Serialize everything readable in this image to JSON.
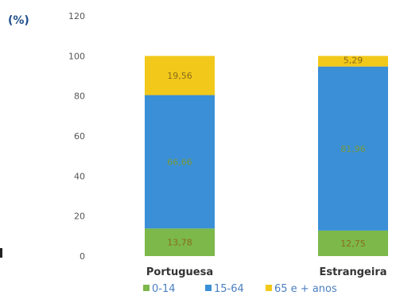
{
  "unit_label": "(%)",
  "colors": {
    "0-14": "#7cb84a",
    "15-64": "#3a8fd6",
    "65e": "#f2c81a",
    "value_text": "#8a6d1a",
    "tick_text": "#555555",
    "category_text": "#333333"
  },
  "chart_data": {
    "type": "bar",
    "stacked": true,
    "categories": [
      "Portuguesa",
      "Estrangeira"
    ],
    "series": [
      {
        "name": "0-14",
        "values": [
          13.78,
          12.75
        ],
        "labels": [
          "13,78",
          "12,75"
        ]
      },
      {
        "name": "15-64",
        "values": [
          66.66,
          81.96
        ],
        "labels": [
          "66,66",
          "81,96"
        ]
      },
      {
        "name": "65 e + anos",
        "values": [
          19.56,
          5.29
        ],
        "labels": [
          "19,56",
          "5,29"
        ]
      }
    ],
    "ylim": [
      0,
      120
    ],
    "yticks": [
      0,
      20,
      40,
      60,
      80,
      100,
      120
    ],
    "grid": false,
    "legend_position": "bottom",
    "title": "",
    "xlabel": "",
    "ylabel": "(%)"
  }
}
